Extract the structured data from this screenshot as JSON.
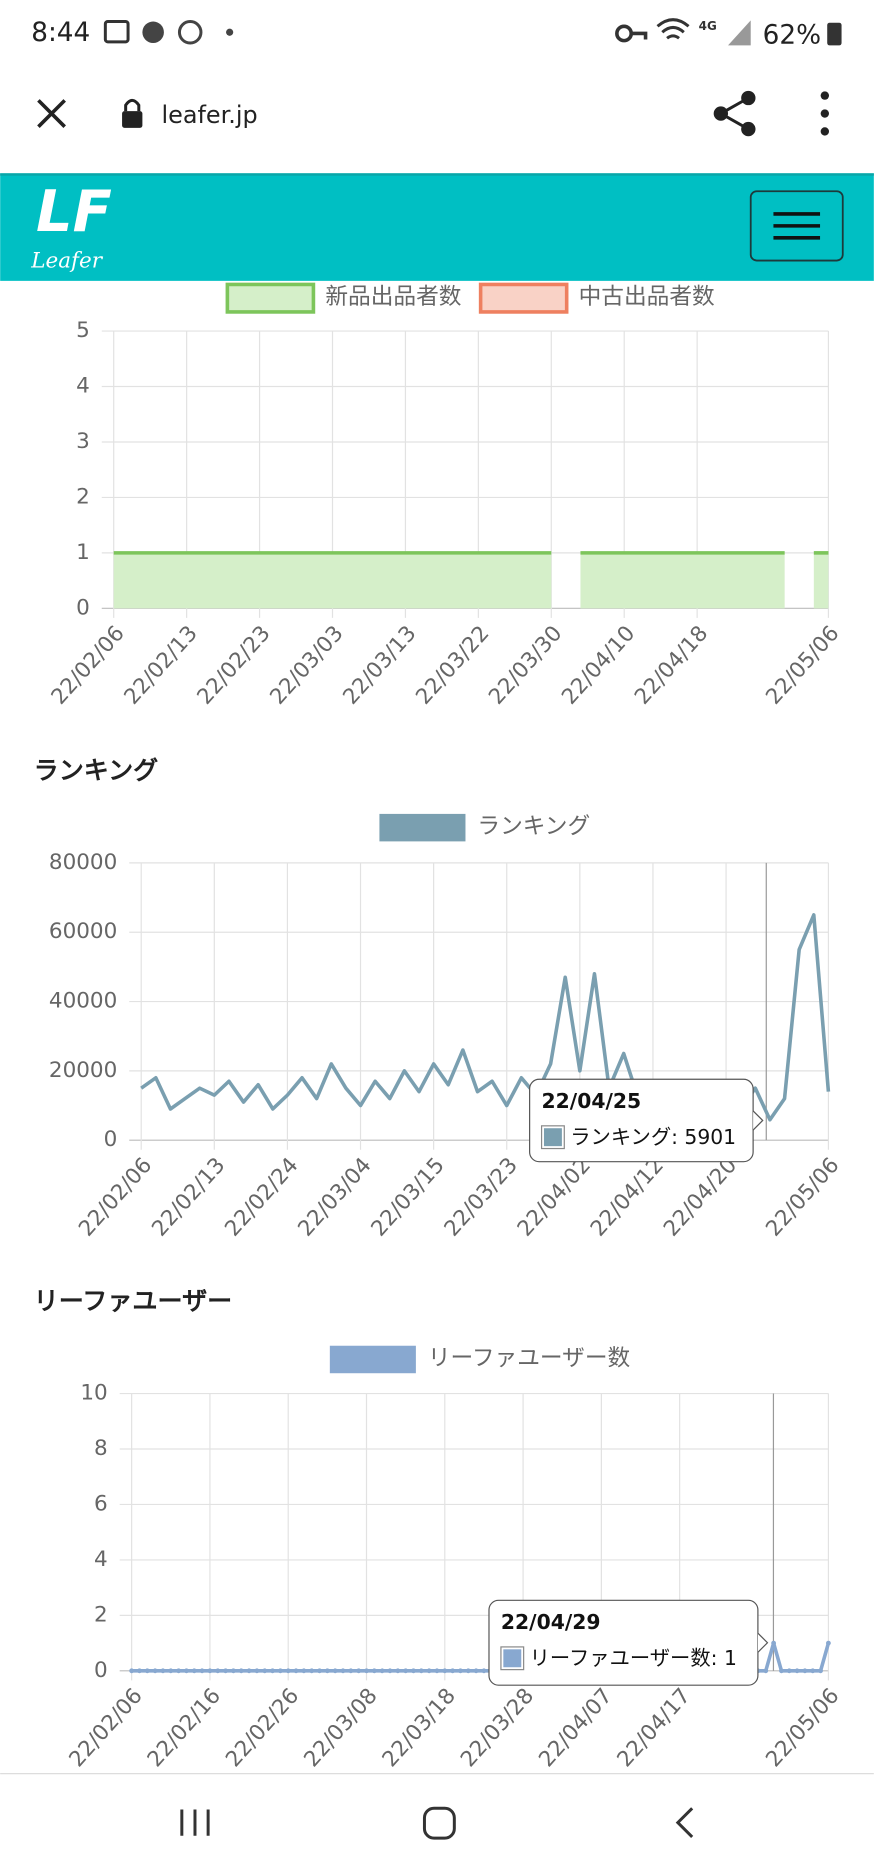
{
  "status_bar": {
    "time": "8:44",
    "network": "4G",
    "battery": "62%"
  },
  "browser": {
    "url": "leafer.jp"
  },
  "site_header": {
    "logo": "LF",
    "logo_text": "Leafer"
  },
  "chart_data": [
    {
      "type": "line",
      "fill": true,
      "categories": [
        "22/02/06",
        null,
        null,
        null,
        null,
        "22/02/13",
        null,
        null,
        null,
        null,
        "22/02/23",
        null,
        null,
        null,
        null,
        "22/03/03",
        null,
        null,
        null,
        null,
        "22/03/13",
        null,
        null,
        null,
        null,
        "22/03/22",
        null,
        null,
        null,
        null,
        "22/03/30",
        null,
        null,
        null,
        null,
        "22/04/10",
        null,
        null,
        null,
        null,
        "22/04/18",
        null,
        null,
        null,
        null,
        null,
        null,
        null,
        null,
        "22/05/06"
      ],
      "series": [
        {
          "name": "新品出品者数",
          "color": "#7dc55b",
          "fill_color": "#d5efc9",
          "values": [
            1,
            1,
            1,
            1,
            1,
            1,
            1,
            1,
            1,
            1,
            1,
            1,
            1,
            1,
            1,
            1,
            1,
            1,
            1,
            1,
            1,
            1,
            1,
            1,
            1,
            1,
            1,
            1,
            1,
            1,
            1,
            null,
            1,
            1,
            1,
            1,
            1,
            1,
            1,
            1,
            1,
            1,
            1,
            1,
            1,
            1,
            1,
            null,
            1,
            1
          ]
        },
        {
          "name": "中古出品者数",
          "color": "#ee8060",
          "fill_color": "#f9d2c6",
          "values": [
            null,
            null,
            null,
            null,
            null,
            null,
            null,
            null,
            null,
            null,
            null,
            null,
            null,
            null,
            null,
            null,
            null,
            null,
            null,
            null,
            null,
            null,
            null,
            null,
            null,
            null,
            null,
            null,
            null,
            null,
            null,
            null,
            null,
            null,
            null,
            null,
            null,
            null,
            null,
            null,
            null,
            null,
            null,
            null,
            null,
            null,
            null,
            null,
            null,
            null
          ]
        }
      ],
      "ylim": [
        0,
        5
      ],
      "yticks": [
        0,
        1,
        2,
        3,
        4,
        5
      ],
      "grid": true
    },
    {
      "type": "line",
      "title": "ランキング",
      "categories": [
        "22/02/06",
        null,
        null,
        null,
        null,
        "22/02/13",
        null,
        null,
        null,
        null,
        "22/02/24",
        null,
        null,
        null,
        null,
        "22/03/04",
        null,
        null,
        null,
        null,
        "22/03/15",
        null,
        null,
        null,
        null,
        "22/03/23",
        null,
        null,
        null,
        null,
        "22/04/02",
        null,
        null,
        null,
        null,
        "22/04/12",
        null,
        null,
        null,
        null,
        "22/04/20",
        null,
        null,
        null,
        null,
        null,
        null,
        "22/05/06"
      ],
      "series": [
        {
          "name": "ランキング",
          "color": "#7a9fb0",
          "values": [
            15000,
            18000,
            9000,
            12000,
            15000,
            13000,
            17000,
            11000,
            16000,
            9000,
            13000,
            18000,
            12000,
            22000,
            15000,
            10000,
            17000,
            12000,
            20000,
            14000,
            22000,
            16000,
            26000,
            14000,
            17000,
            10000,
            18000,
            13000,
            22000,
            47000,
            20000,
            48000,
            15000,
            25000,
            12000,
            9000,
            16000,
            8000,
            14000,
            10000,
            16000,
            9000,
            15000,
            5901,
            12000,
            55000,
            65000,
            14000
          ]
        }
      ],
      "ylim": [
        0,
        80000
      ],
      "yticks": [
        0,
        20000,
        40000,
        60000,
        80000
      ],
      "grid": true,
      "tooltip": {
        "title": "22/04/25",
        "label": "ランキング: 5901"
      }
    },
    {
      "type": "line",
      "title": "リーファユーザー",
      "points": true,
      "categories": [
        "22/02/06",
        null,
        null,
        null,
        null,
        null,
        null,
        null,
        null,
        null,
        "22/02/16",
        null,
        null,
        null,
        null,
        null,
        null,
        null,
        null,
        null,
        "22/02/26",
        null,
        null,
        null,
        null,
        null,
        null,
        null,
        null,
        null,
        "22/03/08",
        null,
        null,
        null,
        null,
        null,
        null,
        null,
        null,
        null,
        "22/03/18",
        null,
        null,
        null,
        null,
        null,
        null,
        null,
        null,
        null,
        "22/03/28",
        null,
        null,
        null,
        null,
        null,
        null,
        null,
        null,
        null,
        "22/04/07",
        null,
        null,
        null,
        null,
        null,
        null,
        null,
        null,
        null,
        "22/04/17",
        null,
        null,
        null,
        null,
        null,
        null,
        null,
        null,
        null,
        null,
        null,
        null,
        null,
        null,
        null,
        null,
        null,
        null,
        "22/05/06"
      ],
      "series": [
        {
          "name": "リーファユーザー数",
          "color": "#88a8d0",
          "values": [
            0,
            0,
            0,
            0,
            0,
            0,
            0,
            0,
            0,
            0,
            0,
            0,
            0,
            0,
            0,
            0,
            0,
            0,
            0,
            0,
            0,
            0,
            0,
            0,
            0,
            0,
            0,
            0,
            0,
            0,
            0,
            0,
            0,
            0,
            0,
            0,
            0,
            0,
            0,
            0,
            0,
            0,
            0,
            0,
            0,
            0,
            0,
            0,
            0,
            0,
            0,
            0,
            0,
            0,
            0,
            0,
            0,
            0,
            0,
            0,
            0,
            0,
            0,
            0,
            0,
            0,
            0,
            0,
            0,
            0,
            0,
            0,
            0,
            0,
            0,
            0,
            0,
            0,
            0,
            0,
            0,
            0,
            1,
            0,
            0,
            0,
            0,
            0,
            0,
            1
          ]
        }
      ],
      "ylim": [
        0,
        10
      ],
      "yticks": [
        0,
        2,
        4,
        6,
        8,
        10
      ],
      "grid": true,
      "tooltip": {
        "title": "22/04/29",
        "label": "リーファユーザー数: 1"
      }
    }
  ]
}
